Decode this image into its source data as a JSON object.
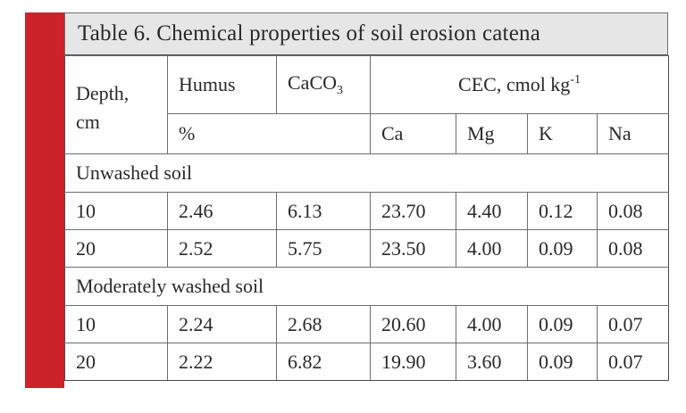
{
  "title": "Table 6. Chemical properties of soil erosion catena",
  "header": {
    "depth_line1": "Depth,",
    "depth_line2": "cm",
    "humus": "Humus",
    "caco3_base": "CaCO",
    "caco3_sub": "3",
    "cec_base": "CEC, cmol kg",
    "cec_sup": "-1",
    "unit_percent": "%",
    "ca": "Ca",
    "mg": "Mg",
    "k": "K",
    "na": "Na"
  },
  "sections": [
    {
      "label": "Unwashed soil",
      "rows": [
        [
          "10",
          "2.46",
          "6.13",
          "23.70",
          "4.40",
          "0.12",
          "0.08"
        ],
        [
          "20",
          "2.52",
          "5.75",
          "23.50",
          "4.00",
          "0.09",
          "0.08"
        ]
      ]
    },
    {
      "label": "Moderately washed soil",
      "rows": [
        [
          "10",
          "2.24",
          "2.68",
          "20.60",
          "4.00",
          "0.09",
          "0.07"
        ],
        [
          "20",
          "2.22",
          "6.82",
          "19.90",
          "3.60",
          "0.09",
          "0.07"
        ]
      ]
    }
  ]
}
